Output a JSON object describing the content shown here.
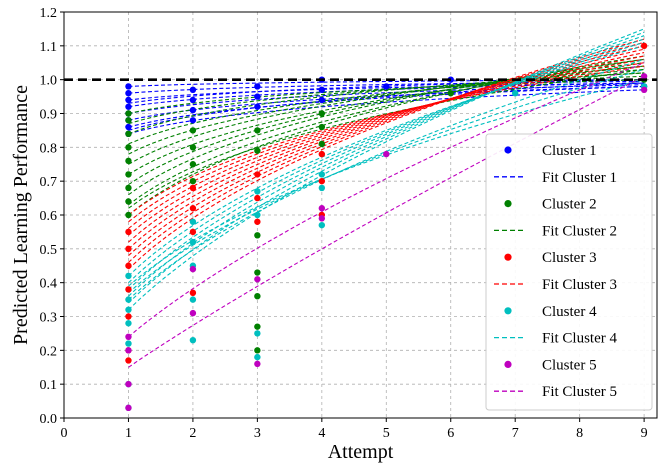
{
  "chart_data": {
    "type": "scatter",
    "xlabel": "Attempt",
    "ylabel": "Predicted Learning Performance",
    "xlim": [
      0,
      9.2
    ],
    "ylim": [
      0.0,
      1.2
    ],
    "x_ticks": [
      0,
      1,
      2,
      3,
      4,
      5,
      6,
      7,
      8,
      9
    ],
    "y_ticks": [
      0.0,
      0.1,
      0.2,
      0.3,
      0.4,
      0.5,
      0.6,
      0.7,
      0.8,
      0.9,
      1.0,
      1.1,
      1.2
    ],
    "reference_line": {
      "y": 1.0,
      "style": "dashed",
      "color": "#000000"
    },
    "grid": true,
    "legend_position": "lower-right",
    "series": [
      {
        "name": "Cluster 1",
        "kind": "points",
        "color": "#0000ff",
        "points": [
          [
            1,
            0.84
          ],
          [
            1,
            0.86
          ],
          [
            1,
            0.88
          ],
          [
            1,
            0.9
          ],
          [
            1,
            0.92
          ],
          [
            1,
            0.94
          ],
          [
            1,
            0.96
          ],
          [
            1,
            0.98
          ],
          [
            2,
            0.88
          ],
          [
            2,
            0.91
          ],
          [
            2,
            0.94
          ],
          [
            2,
            0.97
          ],
          [
            3,
            0.92
          ],
          [
            3,
            0.95
          ],
          [
            3,
            0.98
          ],
          [
            4,
            0.94
          ],
          [
            4,
            0.97
          ],
          [
            4,
            1.0
          ],
          [
            5,
            0.98
          ],
          [
            6,
            1.0
          ],
          [
            9,
            0.98
          ]
        ]
      },
      {
        "name": "Fit Cluster 1",
        "kind": "fits",
        "color": "#0000ff",
        "curves": [
          [
            0.84,
            0.97
          ],
          [
            0.86,
            0.98
          ],
          [
            0.88,
            0.98
          ],
          [
            0.9,
            0.985
          ],
          [
            0.92,
            0.99
          ],
          [
            0.94,
            0.99
          ],
          [
            0.96,
            0.995
          ],
          [
            0.98,
            1.0
          ],
          [
            0.85,
            0.99
          ],
          [
            0.93,
            1.0
          ]
        ]
      },
      {
        "name": "Cluster 2",
        "kind": "points",
        "color": "#008000",
        "points": [
          [
            1,
            0.6
          ],
          [
            1,
            0.64
          ],
          [
            1,
            0.68
          ],
          [
            1,
            0.72
          ],
          [
            1,
            0.76
          ],
          [
            1,
            0.8
          ],
          [
            1,
            0.84
          ],
          [
            1,
            0.88
          ],
          [
            1,
            0.9
          ],
          [
            2,
            0.7
          ],
          [
            2,
            0.75
          ],
          [
            2,
            0.8
          ],
          [
            2,
            0.85
          ],
          [
            3,
            0.2
          ],
          [
            3,
            0.27
          ],
          [
            3,
            0.36
          ],
          [
            3,
            0.43
          ],
          [
            3,
            0.54
          ],
          [
            3,
            0.79
          ],
          [
            3,
            0.85
          ],
          [
            4,
            0.81
          ],
          [
            4,
            0.86
          ],
          [
            4,
            0.9
          ],
          [
            6,
            0.96
          ],
          [
            9,
            1.0
          ]
        ]
      },
      {
        "name": "Fit Cluster 2",
        "kind": "fits",
        "color": "#008000",
        "curves": [
          [
            0.6,
            1.07
          ],
          [
            0.63,
            1.06
          ],
          [
            0.66,
            1.06
          ],
          [
            0.69,
            1.05
          ],
          [
            0.72,
            1.04
          ],
          [
            0.75,
            1.04
          ],
          [
            0.78,
            1.03
          ],
          [
            0.81,
            1.02
          ],
          [
            0.84,
            1.02
          ],
          [
            0.87,
            1.01
          ],
          [
            0.9,
            1.0
          ],
          [
            0.62,
            1.03
          ]
        ]
      },
      {
        "name": "Cluster 3",
        "kind": "points",
        "color": "#ff0000",
        "points": [
          [
            1,
            0.17
          ],
          [
            1,
            0.2
          ],
          [
            1,
            0.3
          ],
          [
            1,
            0.38
          ],
          [
            1,
            0.45
          ],
          [
            1,
            0.5
          ],
          [
            1,
            0.55
          ],
          [
            2,
            0.37
          ],
          [
            2,
            0.55
          ],
          [
            2,
            0.62
          ],
          [
            2,
            0.68
          ],
          [
            3,
            0.58
          ],
          [
            3,
            0.65
          ],
          [
            3,
            0.72
          ],
          [
            4,
            0.6
          ],
          [
            4,
            0.7
          ],
          [
            4,
            0.78
          ],
          [
            9,
            1.1
          ]
        ]
      },
      {
        "name": "Fit Cluster 3",
        "kind": "fits",
        "color": "#ff0000",
        "curves": [
          [
            0.46,
            1.11
          ],
          [
            0.48,
            1.1
          ],
          [
            0.5,
            1.09
          ],
          [
            0.52,
            1.08
          ],
          [
            0.54,
            1.07
          ],
          [
            0.56,
            1.06
          ],
          [
            0.58,
            1.05
          ],
          [
            0.6,
            1.04
          ],
          [
            0.44,
            1.12
          ]
        ]
      },
      {
        "name": "Cluster 4",
        "kind": "points",
        "color": "#00bfbf",
        "points": [
          [
            1,
            0.03
          ],
          [
            1,
            0.1
          ],
          [
            1,
            0.22
          ],
          [
            1,
            0.28
          ],
          [
            1,
            0.32
          ],
          [
            1,
            0.35
          ],
          [
            1,
            0.42
          ],
          [
            2,
            0.23
          ],
          [
            2,
            0.35
          ],
          [
            2,
            0.45
          ],
          [
            2,
            0.52
          ],
          [
            2,
            0.58
          ],
          [
            3,
            0.18
          ],
          [
            3,
            0.25
          ],
          [
            3,
            0.6
          ],
          [
            3,
            0.67
          ],
          [
            4,
            0.57
          ],
          [
            4,
            0.68
          ],
          [
            4,
            0.72
          ],
          [
            7,
            0.96
          ],
          [
            9,
            0.98
          ]
        ]
      },
      {
        "name": "Fit Cluster 4",
        "kind": "fits",
        "color": "#00bfbf",
        "curves": [
          [
            0.32,
            1.15
          ],
          [
            0.34,
            1.14
          ],
          [
            0.36,
            1.13
          ],
          [
            0.38,
            1.12
          ],
          [
            0.4,
            1.11
          ],
          [
            0.42,
            1.1
          ],
          [
            0.35,
            1.06
          ],
          [
            0.37,
            1.03
          ],
          [
            0.39,
            1.0
          ]
        ]
      },
      {
        "name": "Cluster 5",
        "kind": "points",
        "color": "#bf00bf",
        "points": [
          [
            1,
            0.03
          ],
          [
            1,
            0.1
          ],
          [
            1,
            0.2
          ],
          [
            1,
            0.24
          ],
          [
            2,
            0.31
          ],
          [
            2,
            0.44
          ],
          [
            3,
            0.16
          ],
          [
            3,
            0.41
          ],
          [
            4,
            0.59
          ],
          [
            4,
            0.62
          ],
          [
            5,
            0.78
          ],
          [
            9,
            1.01
          ],
          [
            9,
            0.97
          ]
        ]
      },
      {
        "name": "Fit Cluster 5",
        "kind": "fits",
        "color": "#bf00bf",
        "curves": [
          [
            0.15,
            1.01
          ],
          [
            0.24,
            1.05
          ]
        ]
      }
    ]
  }
}
